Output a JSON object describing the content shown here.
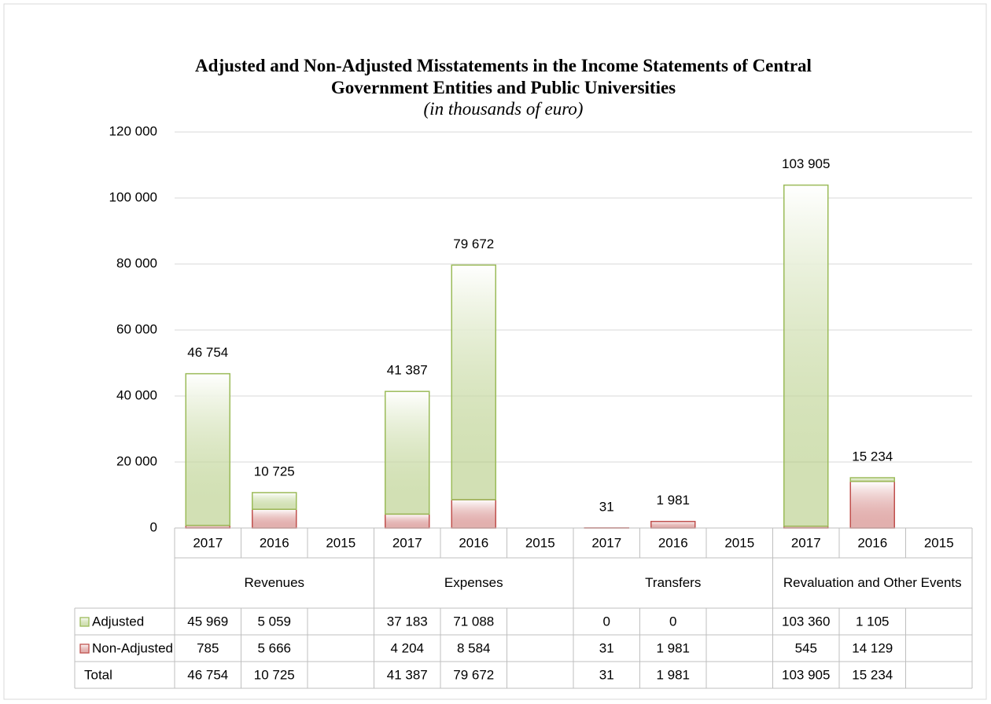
{
  "chart_data": {
    "type": "stacked_bar",
    "title": "Adjusted and Non-Adjusted Misstatements in the Income Statements of Central Government Entities and Public Universities",
    "subtitle": "(in thousands of euro)",
    "groups": [
      "Revenues",
      "Expenses",
      "Transfers",
      "Revaluation and Other Events"
    ],
    "categories": [
      "2017",
      "2016",
      "2015",
      "2017",
      "2016",
      "2015",
      "2017",
      "2016",
      "2015",
      "2017",
      "2016",
      "2015"
    ],
    "series": [
      {
        "name": "Adjusted",
        "color": "#9bbb59",
        "values": [
          45969,
          5059,
          null,
          37183,
          71088,
          null,
          0,
          0,
          null,
          103360,
          1105,
          null
        ],
        "value_labels": [
          "45 969",
          "5 059",
          null,
          "37 183",
          "71 088",
          null,
          "0",
          "0",
          null,
          "103 360",
          "1 105",
          null
        ]
      },
      {
        "name": "Non-Adjusted",
        "color": "#c0504d",
        "values": [
          785,
          5666,
          null,
          4204,
          8584,
          null,
          31,
          1981,
          null,
          545,
          14129,
          null
        ],
        "value_labels": [
          "785",
          "5 666",
          null,
          "4 204",
          "8 584",
          null,
          "31",
          "1 981",
          null,
          "545",
          "14 129",
          null
        ]
      }
    ],
    "totals": {
      "name": "Total",
      "values": [
        46754,
        10725,
        null,
        41387,
        79672,
        null,
        31,
        1981,
        null,
        103905,
        15234,
        null
      ],
      "value_labels": [
        "46 754",
        "10 725",
        null,
        "41 387",
        "79 672",
        null,
        "31",
        "1 981",
        null,
        "103 905",
        "15 234",
        null
      ]
    },
    "ylim": [
      0,
      120000
    ],
    "yticks": [
      0,
      {
        "value": 20000,
        "label": "20 000"
      },
      {
        "value": 40000,
        "label": "40 000"
      },
      {
        "value": 60000,
        "label": "60 000"
      },
      {
        "value": 80000,
        "label": "80 000"
      },
      {
        "value": 100000,
        "label": "100 000"
      },
      {
        "value": 120000,
        "label": "120 000"
      }
    ],
    "grid": true
  }
}
